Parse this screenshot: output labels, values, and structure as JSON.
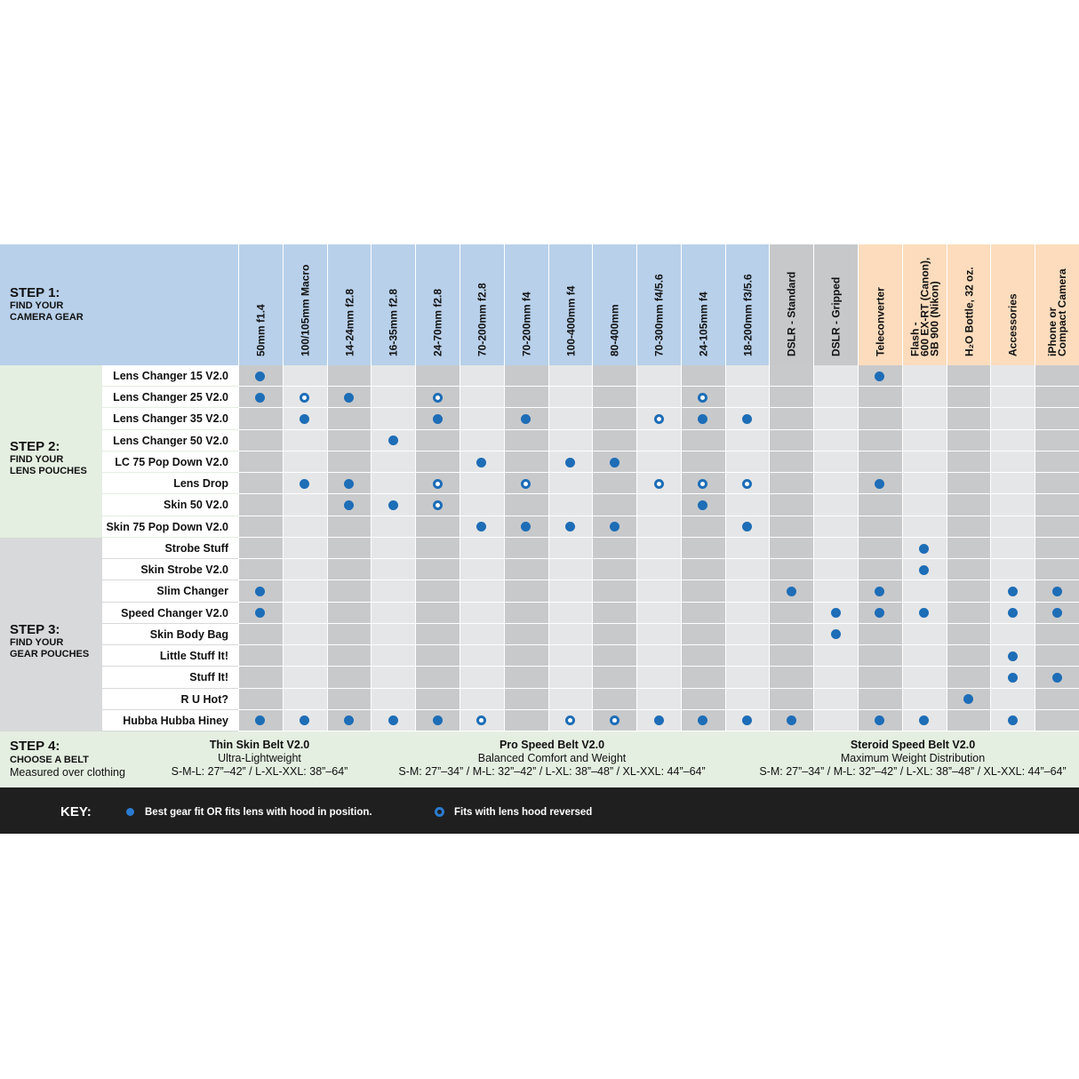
{
  "header": {
    "step": "STEP 1:",
    "text": "FIND YOUR\nCAMERA GEAR"
  },
  "columns": [
    "50mm f1.4",
    "100/105mm Macro",
    "14-24mm f2.8",
    "16-35mm f2.8",
    "24-70mm f2.8",
    "70-200mm f2.8",
    "70-200mm f4",
    "100-400mm f4",
    "80-400mm",
    "70-300mm f4/5.6",
    "24-105mm f4",
    "18-200mm f3/5.6",
    "DSLR - Standard",
    "DSLR - Gripped",
    "Teleconverter",
    "Flash -\n600 EX-RT (Canon),\nSB 900 (Nikon)",
    "H₂O Bottle, 32 oz.",
    "Accessories",
    "iPhone or\nCompact Camera"
  ],
  "groups": [
    {
      "step": "STEP 2:",
      "text": "FIND YOUR\nLENS POUCHES",
      "rows": [
        {
          "name": "Lens Changer 15 V2.0",
          "fits": [
            0,
            14
          ],
          "reversed": []
        },
        {
          "name": "Lens Changer 25 V2.0",
          "fits": [
            0,
            2
          ],
          "reversed": [
            1,
            4,
            10
          ]
        },
        {
          "name": "Lens Changer 35 V2.0",
          "fits": [
            1,
            4,
            6,
            10,
            11
          ],
          "reversed": [
            9
          ]
        },
        {
          "name": "Lens Changer 50 V2.0",
          "fits": [
            3
          ],
          "reversed": []
        },
        {
          "name": "LC 75 Pop Down V2.0",
          "fits": [
            5,
            7,
            8
          ],
          "reversed": []
        },
        {
          "name": "Lens Drop",
          "fits": [
            1,
            2,
            14
          ],
          "reversed": [
            4,
            6,
            9,
            10,
            11
          ]
        },
        {
          "name": "Skin 50 V2.0",
          "fits": [
            2,
            3,
            10
          ],
          "reversed": [
            4
          ]
        },
        {
          "name": "Skin 75 Pop Down V2.0",
          "fits": [
            5,
            6,
            7,
            8,
            11
          ],
          "reversed": []
        }
      ]
    },
    {
      "step": "STEP 3:",
      "text": "FIND YOUR\nGEAR POUCHES",
      "rows": [
        {
          "name": "Strobe Stuff",
          "fits": [
            15
          ],
          "reversed": []
        },
        {
          "name": "Skin Strobe V2.0",
          "fits": [
            15
          ],
          "reversed": []
        },
        {
          "name": "Slim Changer",
          "fits": [
            0,
            12,
            14,
            17,
            18
          ],
          "reversed": []
        },
        {
          "name": "Speed Changer V2.0",
          "fits": [
            0,
            13,
            14,
            15,
            17,
            18
          ],
          "reversed": []
        },
        {
          "name": "Skin Body Bag",
          "fits": [
            13
          ],
          "reversed": []
        },
        {
          "name": "Little Stuff It!",
          "fits": [
            17
          ],
          "reversed": []
        },
        {
          "name": "Stuff It!",
          "fits": [
            17,
            18
          ],
          "reversed": []
        },
        {
          "name": "R U Hot?",
          "fits": [
            16
          ],
          "reversed": []
        },
        {
          "name": "Hubba Hubba Hiney",
          "fits": [
            0,
            1,
            2,
            3,
            4,
            9,
            10,
            11,
            12,
            14,
            15,
            17
          ],
          "reversed": [
            5,
            7,
            8
          ]
        }
      ]
    }
  ],
  "belts": {
    "step": "STEP 4:",
    "text": "CHOOSE A BELT",
    "note": "Measured over clothing",
    "items": [
      {
        "name": "Thin Skin Belt V2.0",
        "desc": "Ultra-Lightweight",
        "sizes": "S-M-L: 27”–42” / L-XL-XXL: 38”–64”"
      },
      {
        "name": "Pro Speed Belt V2.0",
        "desc": "Balanced Comfort and Weight",
        "sizes": "S-M: 27”–34” / M-L: 32”–42” / L-XL: 38”–48” / XL-XXL: 44”–64”"
      },
      {
        "name": "Steroid Speed Belt V2.0",
        "desc": "Maximum Weight Distribution",
        "sizes": "S-M: 27”–34” / M-L: 32”–42” / L-XL: 38”–48” / XL-XXL: 44”–64”"
      }
    ]
  },
  "key": {
    "title": "KEY:",
    "fits": "Best gear fit OR fits lens with hood in position.",
    "reversed": "Fits with lens hood reversed"
  }
}
